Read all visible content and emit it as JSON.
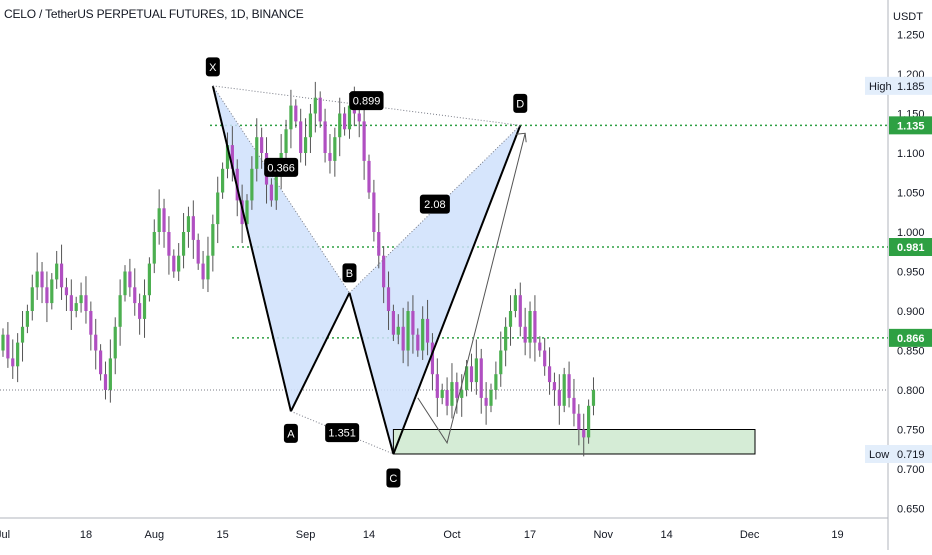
{
  "header": {
    "title": "CELO / TetherUS PERPETUAL FUTURES, 1D, BINANCE"
  },
  "colors": {
    "up": "#4caf50",
    "down": "#b04fc1",
    "pattern_fill": "#cfe0fb",
    "zone_fill": "#d5ecd6",
    "level_line": "#2ea043",
    "label_bg": "#000000"
  },
  "chart_data": {
    "type": "candlestick",
    "instrument": "CELO / TetherUS PERPETUAL FUTURES",
    "timeframe": "1D",
    "exchange": "BINANCE",
    "y_unit": "USDT",
    "ylim": [
      0.63,
      1.285
    ],
    "y_ticks": [
      "1.250",
      "1.200",
      "1.150",
      "1.100",
      "1.050",
      "1.000",
      "0.950",
      "0.900",
      "0.850",
      "0.800",
      "0.750",
      "0.700",
      "0.650"
    ],
    "x_ticks": [
      "Jul",
      "18",
      "Aug",
      "15",
      "Sep",
      "14",
      "Oct",
      "17",
      "Nov",
      "14",
      "Dec",
      "19"
    ],
    "price_labels": {
      "high": {
        "label": "High",
        "value": "1.185"
      },
      "low": {
        "label": "Low",
        "value": "0.719"
      },
      "levels": [
        "1.135",
        "0.981",
        "0.866"
      ]
    },
    "level_values": [
      1.135,
      0.981,
      0.866
    ],
    "current_price": 0.8,
    "pattern": {
      "points": [
        {
          "name": "X",
          "value": 1.185
        },
        {
          "name": "A",
          "value": 0.773
        },
        {
          "name": "B",
          "value": 0.923
        },
        {
          "name": "C",
          "value": 0.719
        },
        {
          "name": "D",
          "value": 1.135
        }
      ],
      "ratios": {
        "XB": "0.366",
        "AC": "1.351",
        "BD": "2.08",
        "XD": "0.899"
      }
    },
    "target_zone": [
      0.719,
      0.75
    ],
    "projection": [
      {
        "date": "Sep 24",
        "value": 0.79
      },
      {
        "date": "Sep 30",
        "value": 0.733
      },
      {
        "date": "Oct 16",
        "value": 1.125
      }
    ]
  }
}
